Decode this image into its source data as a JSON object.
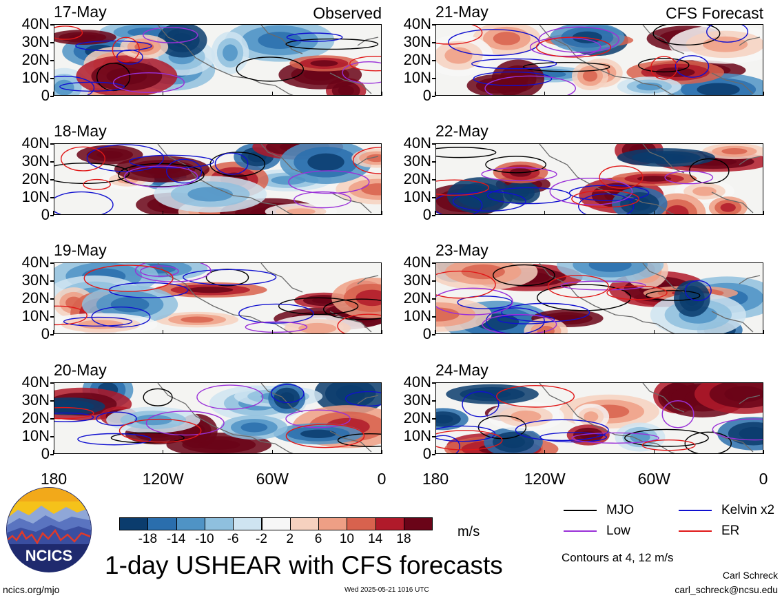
{
  "panels": [
    {
      "date": "17-May",
      "corner": "Observed",
      "column": "left"
    },
    {
      "date": "18-May",
      "corner": "",
      "column": "left"
    },
    {
      "date": "19-May",
      "corner": "",
      "column": "left"
    },
    {
      "date": "20-May",
      "corner": "",
      "column": "left"
    },
    {
      "date": "21-May",
      "corner": "CFS Forecast",
      "column": "right"
    },
    {
      "date": "22-May",
      "corner": "",
      "column": "right"
    },
    {
      "date": "23-May",
      "corner": "",
      "column": "right"
    },
    {
      "date": "24-May",
      "corner": "",
      "column": "right"
    }
  ],
  "lat_labels": [
    "40N",
    "30N",
    "20N",
    "10N",
    "0"
  ],
  "lon_labels": [
    "180",
    "120W",
    "60W",
    "0"
  ],
  "colorbar": {
    "unit": "m/s",
    "labels": [
      "-18",
      "-14",
      "-10",
      "-6",
      "-2",
      "2",
      "6",
      "10",
      "14",
      "18"
    ],
    "colors": [
      "#0b3c6d",
      "#2a6ead",
      "#4f93c5",
      "#8fc0de",
      "#cfe4f1",
      "#f7f7f7",
      "#f6d1bf",
      "#ee9f85",
      "#d8624e",
      "#b01a2a",
      "#6a0418"
    ]
  },
  "legend": {
    "items": [
      {
        "label": "MJO",
        "color": "#000000"
      },
      {
        "label": "Kelvin x2",
        "color": "#1010d0"
      },
      {
        "label": "Low",
        "color": "#9a30d8"
      },
      {
        "label": "ER",
        "color": "#e01818"
      }
    ],
    "contours_note": "Contours at 4, 12 m/s"
  },
  "title": "1-day USHEAR with CFS forecasts",
  "logo_text": "NCICS",
  "footer": {
    "left": "ncics.org/mjo",
    "center": "Wed 2025-05-21 1016 UTC",
    "author": "Carl Schreck",
    "email": "carl_schreck@ncsu.edu"
  }
}
